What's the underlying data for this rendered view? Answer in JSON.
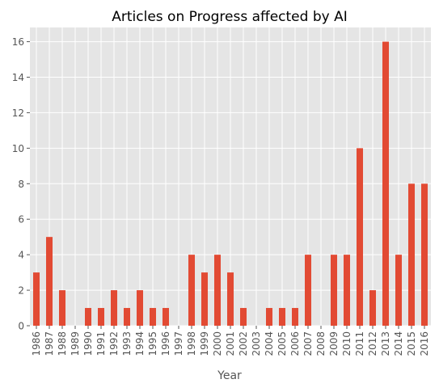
{
  "chart_data": {
    "type": "bar",
    "title": "Articles on Progress affected by AI",
    "xlabel": "Year",
    "ylabel": "",
    "categories": [
      "1986",
      "1987",
      "1988",
      "1989",
      "1990",
      "1991",
      "1992",
      "1993",
      "1994",
      "1995",
      "1996",
      "1997",
      "1998",
      "1999",
      "2000",
      "2001",
      "2002",
      "2003",
      "2004",
      "2005",
      "2006",
      "2007",
      "2008",
      "2009",
      "2010",
      "2011",
      "2012",
      "2013",
      "2014",
      "2015",
      "2016"
    ],
    "values": [
      3,
      5,
      2,
      0,
      1,
      1,
      2,
      1,
      2,
      1,
      1,
      0,
      4,
      3,
      4,
      3,
      1,
      0,
      1,
      1,
      1,
      4,
      0,
      4,
      4,
      10,
      2,
      16,
      4,
      8,
      8
    ],
    "ylim": [
      0,
      16.8
    ],
    "yticks": [
      0,
      2,
      4,
      6,
      8,
      10,
      12,
      14,
      16
    ],
    "grid": true,
    "colors": {
      "bar": "#E24A33",
      "background": "#E5E5E5",
      "grid": "#FFFFFF",
      "text": "#555555",
      "title": "#000000"
    }
  }
}
